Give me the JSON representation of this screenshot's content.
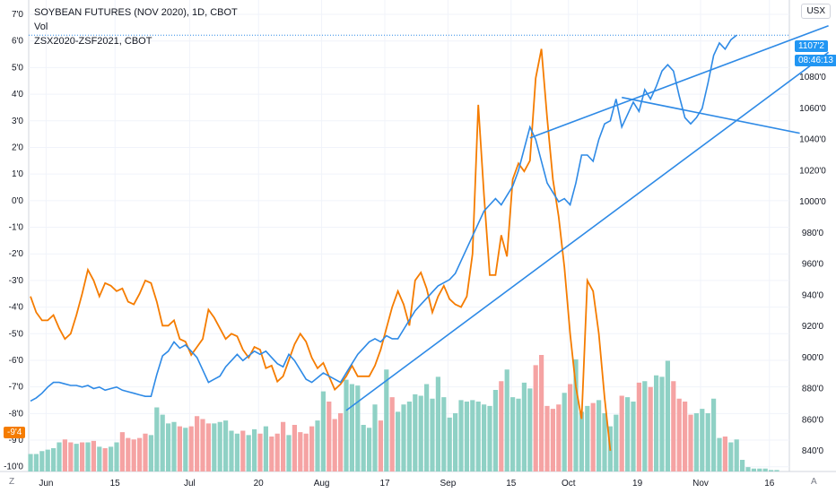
{
  "legend": {
    "symbol": "SOYBEAN FUTURES (NOV 2020), 1D, CBOT",
    "volume": "Vol",
    "compare": "ZSX2020-ZSF2021, CBOT"
  },
  "currency": "USX",
  "price_badge": "1107'2",
  "countdown_badge": "08:46:13",
  "spread_badge": "-9'4",
  "corner_left": "Z",
  "corner_right": "A",
  "colors": {
    "price_line": "#2e8ae6",
    "spread_line": "#f57c00",
    "vol_up": "#8fd1c5",
    "vol_down": "#f5a3a3",
    "trendline": "#2e8ae6",
    "grid": "#f0f3fa"
  },
  "chart_data": {
    "type": "line",
    "title": "SOYBEAN FUTURES (NOV 2020), 1D, CBOT",
    "x_ticks": [
      "Jun",
      "15",
      "Jul",
      "20",
      "Aug",
      "17",
      "Sep",
      "15",
      "Oct",
      "19",
      "Nov",
      "16"
    ],
    "left_axis_ticks": [
      "7'0",
      "6'0",
      "5'0",
      "4'0",
      "3'0",
      "2'0",
      "1'0",
      "0'0",
      "-1'0",
      "-2'0",
      "-3'0",
      "-4'0",
      "-5'0",
      "-6'0",
      "-7'0",
      "-8'0",
      "-9'0",
      "-10'0"
    ],
    "left_axis_range": [
      -10.5,
      7.0
    ],
    "right_axis_ticks": [
      "1100'0",
      "1080'0",
      "1060'0",
      "1040'0",
      "1020'0",
      "1000'0",
      "980'0",
      "960'0",
      "940'0",
      "920'0",
      "900'0",
      "880'0",
      "860'0",
      "840'0"
    ],
    "right_axis_range": [
      832,
      1122
    ],
    "grid": true,
    "series": [
      {
        "axis": "right",
        "values": [
          872,
          874,
          877,
          881,
          884,
          884,
          883,
          882,
          882,
          881,
          882,
          880,
          881,
          879,
          880,
          881,
          879,
          878,
          877,
          876,
          875,
          875,
          889,
          901,
          904,
          910,
          906,
          908,
          904,
          900,
          892,
          884,
          886,
          888,
          894,
          898,
          902,
          898,
          901,
          904,
          902,
          904,
          900,
          896,
          894,
          902,
          898,
          892,
          886,
          884,
          887,
          890,
          888,
          886,
          884,
          890,
          896,
          902,
          906,
          910,
          912,
          910,
          914,
          912,
          912,
          918,
          924,
          930,
          934,
          938,
          942,
          946,
          948,
          950,
          954,
          962,
          970,
          978,
          986,
          994,
          998,
          1002,
          998,
          1004,
          1010,
          1020,
          1034,
          1048,
          1040,
          1026,
          1012,
          1006,
          1000,
          1002,
          998,
          1012,
          1030,
          1030,
          1026,
          1040,
          1050,
          1052,
          1066,
          1048,
          1056,
          1064,
          1058,
          1072,
          1066,
          1074,
          1084,
          1088,
          1084,
          1068,
          1054,
          1050,
          1054,
          1060,
          1076,
          1094,
          1102,
          1098,
          1104,
          1107
        ]
      },
      {
        "axis": "left",
        "values": [
          -3.6,
          -4.2,
          -4.5,
          -4.5,
          -4.3,
          -4.8,
          -5.2,
          -5.0,
          -4.3,
          -3.5,
          -2.6,
          -3.0,
          -3.6,
          -3.1,
          -3.2,
          -3.4,
          -3.3,
          -3.8,
          -3.9,
          -3.5,
          -3.0,
          -3.1,
          -3.8,
          -4.7,
          -4.7,
          -4.5,
          -5.2,
          -5.3,
          -5.8,
          -5.5,
          -5.2,
          -4.1,
          -4.4,
          -4.8,
          -5.2,
          -5.0,
          -5.1,
          -5.6,
          -5.9,
          -5.5,
          -5.6,
          -6.3,
          -6.2,
          -6.8,
          -6.6,
          -6.0,
          -5.4,
          -5.0,
          -5.3,
          -5.9,
          -6.3,
          -6.1,
          -6.6,
          -7.1,
          -6.9,
          -6.6,
          -6.2,
          -6.6,
          -6.6,
          -6.6,
          -6.2,
          -5.6,
          -4.8,
          -4.0,
          -3.4,
          -3.9,
          -4.7,
          -3.0,
          -2.7,
          -3.3,
          -4.2,
          -3.6,
          -3.2,
          -3.7,
          -3.9,
          -4.0,
          -3.6,
          -2.0,
          3.6,
          0.2,
          -2.8,
          -2.8,
          -1.3,
          -2.1,
          0.8,
          1.4,
          1.1,
          1.5,
          4.6,
          5.7,
          3.1,
          0.8,
          -0.6,
          -2.5,
          -5.0,
          -7.0,
          -8.2,
          -3.0,
          -3.4,
          -5.0,
          -7.4,
          -9.4
        ]
      },
      {
        "type": "bar",
        "name": "Vol",
        "axis": "volume",
        "values": [
          12,
          12,
          14,
          15,
          16,
          20,
          22,
          20,
          19,
          20,
          20,
          21,
          17,
          16,
          17,
          20,
          27,
          23,
          22,
          23,
          26,
          25,
          44,
          39,
          33,
          34,
          31,
          30,
          31,
          38,
          36,
          33,
          33,
          34,
          35,
          28,
          26,
          28,
          25,
          29,
          26,
          31,
          24,
          26,
          34,
          25,
          32,
          27,
          26,
          31,
          35,
          55,
          48,
          36,
          40,
          63,
          60,
          59,
          32,
          30,
          46,
          35,
          70,
          51,
          41,
          46,
          48,
          53,
          52,
          60,
          50,
          65,
          51,
          37,
          40,
          49,
          48,
          49,
          48,
          46,
          45,
          56,
          62,
          70,
          51,
          50,
          61,
          57,
          73,
          80,
          45,
          43,
          46,
          54,
          60,
          77,
          41,
          45,
          47,
          49,
          40,
          31,
          39,
          52,
          51,
          48,
          61,
          62,
          58,
          66,
          65,
          76,
          62,
          50,
          48,
          39,
          40,
          43,
          40,
          50,
          23,
          24,
          20,
          22,
          8,
          3,
          2,
          2,
          2,
          1,
          1
        ]
      }
    ],
    "trendlines": [
      {
        "axis": "right",
        "from": [
          87,
          1041
        ],
        "to": [
          139,
          1113
        ]
      },
      {
        "axis": "right",
        "from": [
          55,
          866
        ],
        "to": [
          139,
          1096
        ]
      },
      {
        "axis": "right",
        "from": [
          103,
          1067
        ],
        "to": [
          134,
          1044
        ]
      }
    ]
  }
}
